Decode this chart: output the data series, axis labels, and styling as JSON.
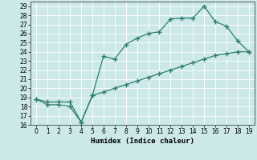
{
  "line1_x": [
    0,
    1,
    2,
    3,
    4,
    5,
    6,
    7,
    8,
    9,
    10,
    11,
    12,
    13,
    14,
    15,
    16,
    17,
    18,
    19
  ],
  "line1_y": [
    18.8,
    18.2,
    18.2,
    18.0,
    16.3,
    19.2,
    23.5,
    23.2,
    24.8,
    25.5,
    26.0,
    26.2,
    27.6,
    27.7,
    27.7,
    29.0,
    27.3,
    26.8,
    25.2,
    24.0
  ],
  "line2_x": [
    0,
    1,
    2,
    3,
    4,
    5,
    6,
    7,
    8,
    9,
    10,
    11,
    12,
    13,
    14,
    15,
    16,
    17,
    18,
    19
  ],
  "line2_y": [
    18.8,
    18.5,
    18.5,
    18.5,
    16.3,
    19.2,
    19.6,
    20.0,
    20.4,
    20.8,
    21.2,
    21.6,
    22.0,
    22.4,
    22.8,
    23.2,
    23.6,
    23.8,
    24.0,
    24.0
  ],
  "line_color": "#2d7e72",
  "bg_color": "#cce8e8",
  "grid_color": "#b0d8d8",
  "xlabel": "Humidex (Indice chaleur)",
  "xlim": [
    -0.5,
    19.5
  ],
  "ylim": [
    16,
    29.5
  ],
  "yticks": [
    16,
    17,
    18,
    19,
    20,
    21,
    22,
    23,
    24,
    25,
    26,
    27,
    28,
    29
  ],
  "xticks": [
    0,
    1,
    2,
    3,
    4,
    5,
    6,
    7,
    8,
    9,
    10,
    11,
    12,
    13,
    14,
    15,
    16,
    17,
    18,
    19
  ],
  "marker": "+",
  "linewidth": 0.9,
  "markersize": 4,
  "tick_fontsize": 5.5,
  "xlabel_fontsize": 6.5
}
